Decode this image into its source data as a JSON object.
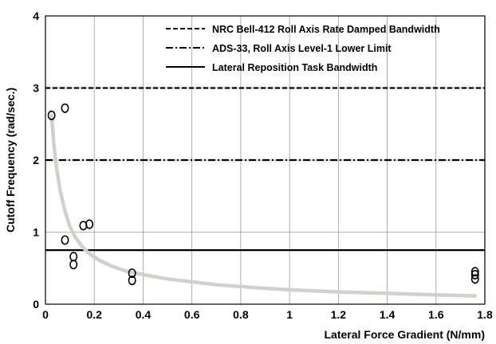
{
  "chart_data": {
    "type": "scatter",
    "title": "",
    "xlabel": "Lateral Force Gradient (N/mm)",
    "ylabel": "Cutoff Frequency (rad/sec.)",
    "xlim": [
      0,
      1.8
    ],
    "ylim": [
      0,
      4
    ],
    "xticks": [
      "0",
      "0.2",
      "0.4",
      "0.6",
      "0.8",
      "1",
      "1.2",
      "1.4",
      "1.6",
      "1.8"
    ],
    "yticks": [
      "0",
      "1",
      "2",
      "3",
      "4"
    ],
    "grid": true,
    "legend_position": "top-right",
    "reference_lines": [
      {
        "name": "NRC Bell-412 Roll Axis Rate Damped Bandwidth",
        "y": 3.0,
        "style": "dashed",
        "color": "#000000"
      },
      {
        "name": "ADS-33, Roll Axis Level-1 Lower Limit",
        "y": 2.0,
        "style": "dash-dot",
        "color": "#000000"
      },
      {
        "name": "Lateral Reposition Task Bandwidth",
        "y": 0.75,
        "style": "solid",
        "color": "#000000"
      }
    ],
    "scatter_series": {
      "marker": "open-circle",
      "color": "#000000",
      "points": [
        {
          "x": 0.025,
          "y": 2.62
        },
        {
          "x": 0.08,
          "y": 2.72
        },
        {
          "x": 0.08,
          "y": 0.89
        },
        {
          "x": 0.115,
          "y": 0.66
        },
        {
          "x": 0.115,
          "y": 0.55
        },
        {
          "x": 0.155,
          "y": 1.09
        },
        {
          "x": 0.18,
          "y": 1.11
        },
        {
          "x": 0.355,
          "y": 0.43
        },
        {
          "x": 0.355,
          "y": 0.33
        },
        {
          "x": 1.76,
          "y": 0.45
        },
        {
          "x": 1.76,
          "y": 0.41
        },
        {
          "x": 1.76,
          "y": 0.35
        }
      ]
    },
    "fit_curve": {
      "color": "#d3d0cb",
      "points": [
        [
          0.025,
          2.62
        ],
        [
          0.035,
          2.2
        ],
        [
          0.045,
          1.9
        ],
        [
          0.06,
          1.58
        ],
        [
          0.08,
          1.29
        ],
        [
          0.1,
          1.08
        ],
        [
          0.12,
          0.94
        ],
        [
          0.15,
          0.8
        ],
        [
          0.18,
          0.7
        ],
        [
          0.22,
          0.61
        ],
        [
          0.27,
          0.53
        ],
        [
          0.33,
          0.46
        ],
        [
          0.4,
          0.41
        ],
        [
          0.5,
          0.35
        ],
        [
          0.6,
          0.31
        ],
        [
          0.7,
          0.27
        ],
        [
          0.8,
          0.245
        ],
        [
          0.9,
          0.22
        ],
        [
          1.0,
          0.2
        ],
        [
          1.1,
          0.185
        ],
        [
          1.2,
          0.17
        ],
        [
          1.3,
          0.16
        ],
        [
          1.4,
          0.15
        ],
        [
          1.5,
          0.14
        ],
        [
          1.6,
          0.13
        ],
        [
          1.7,
          0.12
        ],
        [
          1.76,
          0.115
        ]
      ]
    }
  }
}
